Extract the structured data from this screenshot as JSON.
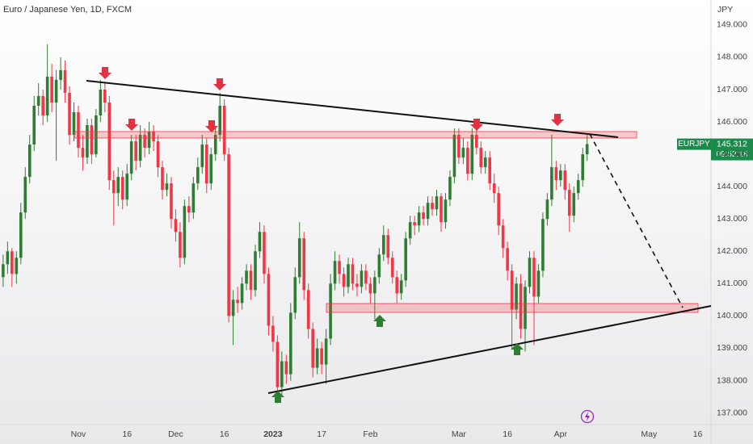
{
  "chart_data": {
    "type": "candlestick",
    "title": "Euro / Japanese Yen, 1D, FXCM",
    "currency": "JPY",
    "symbol": "EURJPY",
    "last_price": 145.312,
    "countdown": "09:52:18",
    "up_color": "#2e7d32",
    "down_color": "#f23645",
    "grid": false,
    "xlim": [
      -0.71,
      160.0
    ],
    "ylim": [
      136.64,
      149.77
    ],
    "yticks": [
      {
        "value": 137,
        "label": "137.000"
      },
      {
        "value": 138,
        "label": "138.000"
      },
      {
        "value": 139,
        "label": "139.000"
      },
      {
        "value": 140,
        "label": "140.000"
      },
      {
        "value": 141,
        "label": "141.000"
      },
      {
        "value": 142,
        "label": "142.000"
      },
      {
        "value": 143,
        "label": "143.000"
      },
      {
        "value": 144,
        "label": "144.000"
      },
      {
        "value": 145,
        "label": "145.000"
      },
      {
        "value": 146,
        "label": "146.000"
      },
      {
        "value": 147,
        "label": "147.000"
      },
      {
        "value": 148,
        "label": "148.000"
      },
      {
        "value": 149,
        "label": "149.000"
      }
    ],
    "xticks": [
      {
        "value": 17,
        "label": "Nov"
      },
      {
        "value": 28,
        "label": "16"
      },
      {
        "value": 39,
        "label": "Dec"
      },
      {
        "value": 50,
        "label": "16"
      },
      {
        "value": 61,
        "label": "2023",
        "bold": true
      },
      {
        "value": 72,
        "label": "17"
      },
      {
        "value": 83,
        "label": "Feb"
      },
      {
        "value": 103,
        "label": "Mar"
      },
      {
        "value": 114,
        "label": "16"
      },
      {
        "value": 126,
        "label": "Apr"
      },
      {
        "value": 146,
        "label": "May"
      },
      {
        "value": 157,
        "label": "16"
      }
    ],
    "x": [
      0,
      1,
      2,
      3,
      4,
      5,
      6,
      7,
      8,
      9,
      10,
      11,
      12,
      13,
      14,
      15,
      16,
      17,
      18,
      19,
      20,
      21,
      22,
      23,
      24,
      25,
      26,
      27,
      28,
      29,
      30,
      31,
      32,
      33,
      34,
      35,
      36,
      37,
      38,
      39,
      40,
      41,
      42,
      43,
      44,
      45,
      46,
      47,
      48,
      49,
      50,
      51,
      52,
      53,
      54,
      55,
      56,
      57,
      58,
      59,
      60,
      61,
      62,
      63,
      64,
      65,
      66,
      67,
      68,
      69,
      70,
      71,
      72,
      73,
      74,
      75,
      76,
      77,
      78,
      79,
      80,
      81,
      82,
      83,
      84,
      85,
      86,
      87,
      88,
      89,
      90,
      91,
      92,
      93,
      94,
      95,
      96,
      97,
      98,
      99,
      100,
      101,
      102,
      103,
      104,
      105,
      106,
      107,
      108,
      109,
      110,
      111,
      112,
      113,
      114,
      115,
      116,
      117,
      118,
      119,
      120,
      121,
      122,
      123,
      124,
      125,
      126,
      127,
      128,
      129,
      130,
      131,
      132
    ],
    "candles": [
      [
        141.2,
        141.9,
        140.9,
        141.6
      ],
      [
        141.6,
        142.3,
        141.3,
        142.0
      ],
      [
        142.0,
        142.1,
        140.9,
        141.3
      ],
      [
        141.3,
        142.0,
        141.0,
        141.8
      ],
      [
        141.8,
        143.5,
        141.6,
        143.2
      ],
      [
        143.2,
        144.6,
        143.0,
        144.3
      ],
      [
        144.3,
        145.6,
        144.1,
        145.3
      ],
      [
        145.3,
        146.8,
        145.1,
        146.5
      ],
      [
        146.5,
        147.2,
        146.2,
        146.8
      ],
      [
        146.8,
        147.0,
        145.9,
        146.2
      ],
      [
        146.2,
        148.4,
        146.0,
        147.4
      ],
      [
        147.4,
        147.8,
        146.3,
        146.6
      ],
      [
        146.6,
        147.6,
        144.8,
        147.3
      ],
      [
        147.3,
        148.0,
        147.0,
        147.6
      ],
      [
        147.6,
        147.9,
        146.6,
        146.9
      ],
      [
        146.9,
        147.1,
        145.3,
        145.6
      ],
      [
        145.6,
        146.6,
        145.4,
        146.3
      ],
      [
        146.3,
        146.5,
        144.9,
        145.2
      ],
      [
        145.2,
        145.6,
        144.5,
        144.9
      ],
      [
        144.9,
        146.1,
        144.7,
        145.9
      ],
      [
        145.9,
        146.1,
        144.7,
        145.0
      ],
      [
        145.0,
        146.4,
        144.9,
        146.2
      ],
      [
        146.2,
        147.3,
        146.0,
        147.0
      ],
      [
        147.0,
        147.2,
        146.3,
        146.6
      ],
      [
        146.6,
        146.8,
        143.9,
        144.2
      ],
      [
        144.2,
        144.5,
        142.8,
        143.8
      ],
      [
        143.8,
        144.6,
        143.4,
        144.3
      ],
      [
        144.3,
        144.5,
        143.3,
        143.6
      ],
      [
        143.6,
        144.7,
        143.4,
        144.4
      ],
      [
        144.4,
        145.6,
        144.2,
        145.4
      ],
      [
        145.4,
        145.6,
        144.5,
        144.8
      ],
      [
        144.8,
        145.9,
        144.6,
        145.6
      ],
      [
        145.6,
        145.8,
        144.9,
        145.2
      ],
      [
        145.2,
        146.0,
        145.0,
        145.7
      ],
      [
        145.7,
        145.9,
        145.1,
        145.4
      ],
      [
        145.4,
        145.6,
        144.3,
        144.6
      ],
      [
        144.6,
        144.8,
        143.6,
        143.9
      ],
      [
        143.9,
        144.4,
        143.7,
        144.1
      ],
      [
        144.1,
        144.3,
        142.7,
        143.0
      ],
      [
        143.0,
        143.3,
        142.3,
        142.6
      ],
      [
        142.6,
        142.9,
        141.5,
        141.8
      ],
      [
        141.8,
        143.6,
        141.6,
        143.4
      ],
      [
        143.4,
        143.7,
        142.9,
        143.2
      ],
      [
        143.2,
        144.3,
        143.0,
        144.1
      ],
      [
        144.1,
        144.9,
        143.9,
        144.6
      ],
      [
        144.6,
        145.6,
        144.4,
        145.3
      ],
      [
        145.3,
        145.5,
        143.8,
        144.1
      ],
      [
        144.1,
        145.2,
        143.9,
        145.0
      ],
      [
        145.0,
        145.8,
        144.8,
        145.6
      ],
      [
        145.6,
        146.9,
        145.4,
        146.5
      ],
      [
        146.5,
        146.7,
        144.8,
        145.0
      ],
      [
        145.0,
        145.2,
        139.8,
        140.0
      ],
      [
        140.0,
        140.8,
        139.1,
        140.5
      ],
      [
        140.5,
        140.9,
        140.1,
        140.4
      ],
      [
        140.4,
        141.2,
        140.2,
        141.0
      ],
      [
        141.0,
        141.6,
        140.8,
        141.4
      ],
      [
        141.4,
        141.6,
        140.5,
        140.8
      ],
      [
        140.8,
        142.2,
        140.6,
        142.0
      ],
      [
        142.0,
        142.9,
        141.8,
        142.6
      ],
      [
        142.6,
        142.8,
        141.0,
        141.3
      ],
      [
        141.3,
        141.5,
        139.4,
        139.7
      ],
      [
        139.7,
        140.0,
        138.9,
        139.2
      ],
      [
        139.2,
        139.4,
        137.3,
        137.8
      ],
      [
        137.8,
        138.9,
        137.5,
        138.6
      ],
      [
        138.6,
        138.8,
        137.9,
        138.2
      ],
      [
        138.2,
        140.4,
        138.0,
        140.1
      ],
      [
        140.1,
        141.5,
        139.9,
        141.2
      ],
      [
        141.2,
        142.9,
        141.0,
        142.4
      ],
      [
        142.4,
        142.6,
        140.5,
        140.8
      ],
      [
        140.8,
        141.0,
        139.3,
        139.6
      ],
      [
        139.6,
        139.8,
        138.1,
        138.4
      ],
      [
        138.4,
        139.3,
        138.2,
        139.0
      ],
      [
        139.0,
        139.2,
        138.2,
        138.5
      ],
      [
        138.5,
        139.6,
        137.9,
        139.3
      ],
      [
        139.3,
        141.3,
        139.1,
        141.0
      ],
      [
        141.0,
        142.0,
        140.8,
        141.7
      ],
      [
        141.7,
        141.9,
        141.0,
        141.3
      ],
      [
        141.3,
        141.5,
        140.6,
        140.9
      ],
      [
        140.9,
        141.8,
        140.7,
        141.6
      ],
      [
        141.6,
        141.8,
        140.8,
        141.0
      ],
      [
        141.0,
        141.3,
        140.6,
        140.9
      ],
      [
        140.9,
        141.6,
        140.7,
        141.4
      ],
      [
        141.4,
        141.6,
        140.8,
        141.0
      ],
      [
        141.0,
        141.2,
        140.4,
        140.7
      ],
      [
        140.7,
        141.4,
        139.9,
        141.2
      ],
      [
        141.2,
        142.1,
        141.0,
        141.9
      ],
      [
        141.9,
        142.8,
        141.7,
        142.5
      ],
      [
        142.5,
        142.7,
        141.6,
        141.8
      ],
      [
        141.8,
        142.0,
        141.0,
        141.2
      ],
      [
        141.2,
        141.4,
        140.4,
        140.7
      ],
      [
        140.7,
        141.3,
        140.5,
        141.1
      ],
      [
        141.1,
        142.6,
        140.9,
        142.4
      ],
      [
        142.4,
        143.1,
        142.2,
        142.9
      ],
      [
        142.9,
        143.1,
        142.5,
        142.8
      ],
      [
        142.8,
        143.4,
        142.6,
        143.2
      ],
      [
        143.2,
        143.4,
        142.8,
        143.0
      ],
      [
        143.0,
        143.7,
        142.8,
        143.5
      ],
      [
        143.5,
        143.7,
        143.1,
        143.3
      ],
      [
        143.3,
        143.9,
        143.1,
        143.7
      ],
      [
        143.7,
        143.8,
        142.6,
        142.9
      ],
      [
        142.9,
        143.8,
        142.7,
        143.6
      ],
      [
        143.6,
        144.5,
        143.4,
        144.3
      ],
      [
        144.3,
        145.8,
        144.1,
        145.6
      ],
      [
        145.6,
        145.8,
        144.7,
        144.9
      ],
      [
        144.9,
        145.5,
        144.7,
        145.2
      ],
      [
        145.2,
        145.4,
        144.2,
        144.4
      ],
      [
        144.4,
        145.8,
        144.2,
        145.6
      ],
      [
        145.6,
        145.8,
        145.0,
        145.2
      ],
      [
        145.2,
        145.4,
        144.4,
        144.6
      ],
      [
        144.6,
        145.1,
        144.4,
        144.9
      ],
      [
        144.9,
        145.1,
        143.9,
        144.1
      ],
      [
        144.1,
        144.4,
        143.5,
        143.8
      ],
      [
        143.8,
        144.0,
        142.5,
        142.8
      ],
      [
        142.8,
        143.0,
        141.8,
        142.1
      ],
      [
        142.1,
        142.3,
        141.1,
        141.4
      ],
      [
        141.4,
        141.6,
        139.0,
        140.2
      ],
      [
        140.2,
        141.2,
        139.9,
        141.0
      ],
      [
        141.0,
        141.3,
        139.3,
        139.6
      ],
      [
        139.6,
        141.1,
        138.9,
        140.9
      ],
      [
        140.9,
        142.0,
        140.7,
        141.8
      ],
      [
        141.8,
        142.0,
        139.1,
        140.6
      ],
      [
        140.6,
        141.6,
        140.4,
        141.4
      ],
      [
        141.4,
        143.2,
        141.2,
        143.0
      ],
      [
        143.0,
        143.8,
        142.8,
        143.6
      ],
      [
        143.6,
        145.6,
        143.4,
        144.6
      ],
      [
        144.6,
        144.8,
        143.9,
        144.2
      ],
      [
        144.2,
        144.7,
        144.0,
        144.5
      ],
      [
        144.5,
        144.7,
        143.6,
        143.9
      ],
      [
        143.9,
        144.1,
        142.6,
        143.1
      ],
      [
        143.1,
        144.0,
        142.9,
        143.8
      ],
      [
        143.8,
        144.4,
        143.6,
        144.2
      ],
      [
        144.2,
        145.2,
        144.0,
        145.0
      ],
      [
        145.0,
        145.6,
        144.8,
        145.312
      ]
    ]
  }
}
